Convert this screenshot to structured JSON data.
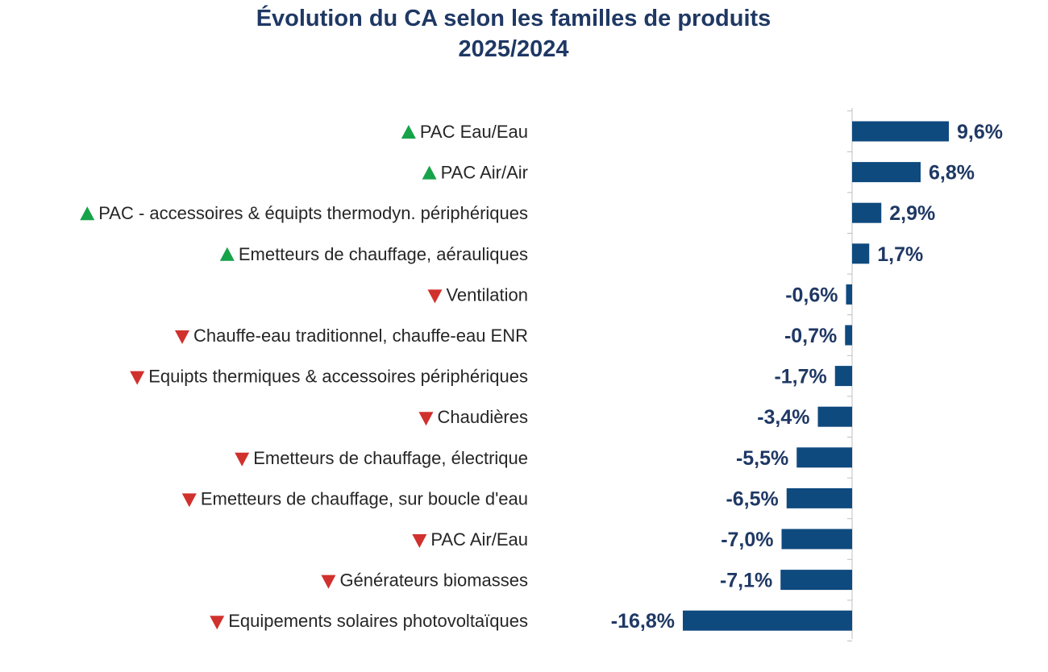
{
  "chart_data": {
    "type": "bar",
    "orientation": "horizontal",
    "title": "Évolution du CA selon les familles de produits",
    "subtitle": "2025/2024",
    "categories": [
      "PAC Eau/Eau",
      "PAC Air/Air",
      "PAC - accessoires & équipts thermodyn. périphériques",
      "Emetteurs de chauffage, aérauliques",
      "Ventilation",
      "Chauffe-eau traditionnel, chauffe-eau ENR",
      "Equipts thermiques & accessoires périphériques",
      "Chaudières",
      "Emetteurs de chauffage, électrique",
      "Emetteurs de chauffage, sur boucle d'eau",
      "PAC Air/Eau",
      "Générateurs biomasses",
      "Equipements solaires photovoltaïques"
    ],
    "values": [
      9.6,
      6.8,
      2.9,
      1.7,
      -0.6,
      -0.7,
      -1.7,
      -3.4,
      -5.5,
      -6.5,
      -7.0,
      -7.1,
      -16.8
    ],
    "data_labels": [
      "9,6%",
      "6,8%",
      "2,9%",
      "1,7%",
      "-0,6%",
      "-0,7%",
      "-1,7%",
      "-3,4%",
      "-5,5%",
      "-6,5%",
      "-7,0%",
      "-7,1%",
      "-16,8%"
    ],
    "trend_icons": [
      "up",
      "up",
      "up",
      "up",
      "down",
      "down",
      "down",
      "down",
      "down",
      "down",
      "down",
      "down",
      "down"
    ],
    "xlabel": "",
    "ylabel": "",
    "grid": false,
    "legend": "none",
    "colors": {
      "bar": "#0f4a7f",
      "label": "#1f3864",
      "up": "#17a34a",
      "down": "#d0312d",
      "axis": "#bfbfbf",
      "category_text": "#262626"
    }
  }
}
